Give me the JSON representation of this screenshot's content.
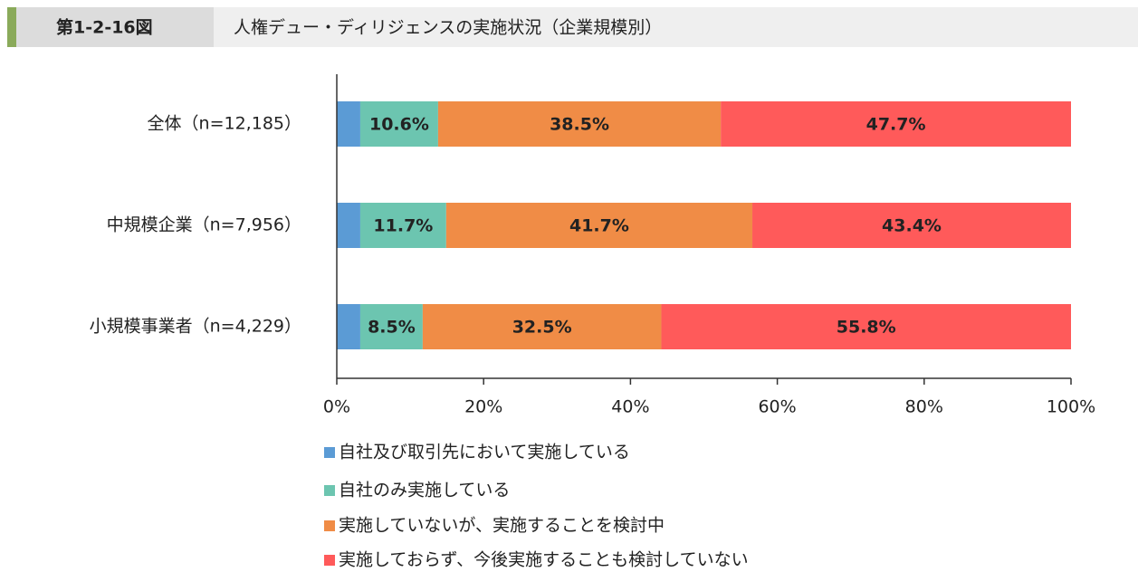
{
  "chart_data": {
    "type": "stacked_bar_horizontal",
    "figure_number": "第1-2-16図",
    "title": "人権デュー・ディリジェンスの実施状況（企業規模別）",
    "categories": [
      "全体（n=12,185）",
      "中規模企業（n=7,956）",
      "小規模事業者（n=4,229）"
    ],
    "series": [
      {
        "name": "自社及び取引先において実施している",
        "color": "#5b9bd5",
        "values": [
          3.2,
          3.2,
          3.2
        ]
      },
      {
        "name": "自社のみ実施している",
        "color": "#6cc5b0",
        "values": [
          10.6,
          11.7,
          8.5
        ],
        "value_labels": [
          "10.6%",
          "11.7%",
          "8.5%"
        ]
      },
      {
        "name": "実施していないが、実施することを検討中",
        "color": "#f08c46",
        "values": [
          38.5,
          41.7,
          32.5
        ],
        "value_labels": [
          "38.5%",
          "41.7%",
          "32.5%"
        ]
      },
      {
        "name": "実施しておらず、今後実施することも検討していない",
        "color": "#ff5a5a",
        "values": [
          47.7,
          43.4,
          55.8
        ],
        "value_labels": [
          "47.7%",
          "43.4%",
          "55.8%"
        ]
      }
    ],
    "xlim": [
      0,
      100
    ],
    "xticks": [
      {
        "value": 0,
        "label": "0%"
      },
      {
        "value": 20,
        "label": "20%"
      },
      {
        "value": 40,
        "label": "40%"
      },
      {
        "value": 60,
        "label": "60%"
      },
      {
        "value": 80,
        "label": "80%"
      },
      {
        "value": 100,
        "label": "100%"
      }
    ]
  }
}
